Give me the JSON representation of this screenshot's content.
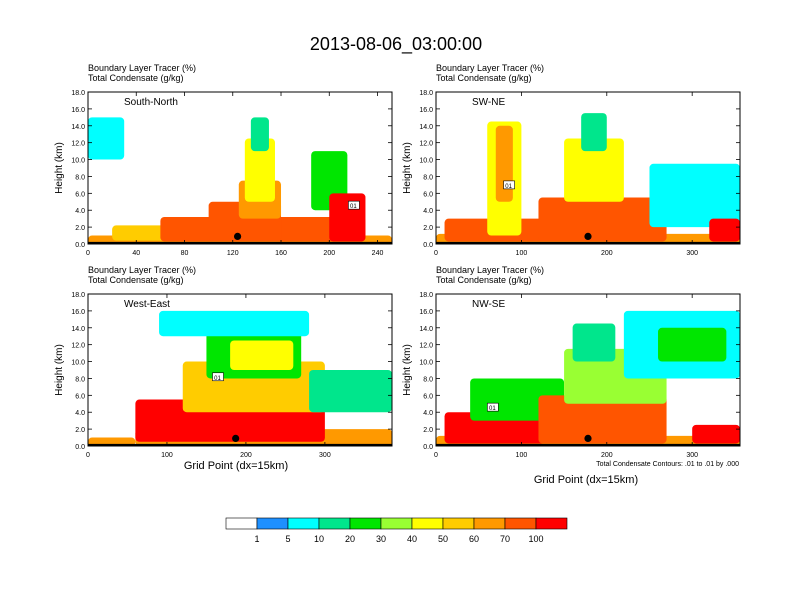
{
  "title": "2013-08-06_03:00:00",
  "panel_label_line1": "Boundary Layer Tracer   (%)",
  "panel_label_line2": "Total Condensate   (g/kg)",
  "ylabel": "Height (km)",
  "xlabel": "Grid Point (dx=15km)",
  "contour_note": "Total Condensate Contours: .01 to .01 by .000",
  "contour_label": "01",
  "colors": {
    "bins": [
      "#ffffff",
      "#1e90ff",
      "#00ffff",
      "#00e68c",
      "#00e600",
      "#99ff33",
      "#ffff00",
      "#ffcc00",
      "#ff9900",
      "#ff5500",
      "#ff0000"
    ],
    "contour": "#000000",
    "terrain": "#000000"
  },
  "colorbar": {
    "labels": [
      "1",
      "5",
      "10",
      "20",
      "30",
      "40",
      "50",
      "60",
      "70",
      "100"
    ]
  },
  "chart_data": [
    {
      "type": "heatmap",
      "name": "South-North",
      "xlim": [
        0,
        252
      ],
      "ylim": [
        0,
        18
      ],
      "xticks": [
        "0",
        "40",
        "80",
        "120",
        "160",
        "200",
        "240"
      ],
      "xtick_values": [
        0,
        40,
        80,
        120,
        160,
        200,
        240
      ],
      "yticks": [
        "0.0",
        "2.0",
        "4.0",
        "6.0",
        "8.0",
        "10.0",
        "12.0",
        "14.0",
        "16.0",
        "18.0"
      ],
      "marker_x": 124,
      "contour_label_x": 220,
      "contour_label_y": 4.6,
      "cells": [
        {
          "x0": 0,
          "x1": 252,
          "y0": 0,
          "y1": 1.0,
          "bin": 8
        },
        {
          "x0": 20,
          "x1": 110,
          "y0": 0.4,
          "y1": 2.2,
          "bin": 7
        },
        {
          "x0": 60,
          "x1": 230,
          "y0": 0.3,
          "y1": 3.2,
          "bin": 9
        },
        {
          "x0": 100,
          "x1": 160,
          "y0": 0.3,
          "y1": 5.0,
          "bin": 9
        },
        {
          "x0": 125,
          "x1": 160,
          "y0": 3.0,
          "y1": 7.5,
          "bin": 8
        },
        {
          "x0": 130,
          "x1": 155,
          "y0": 5.0,
          "y1": 12.5,
          "bin": 6
        },
        {
          "x0": 135,
          "x1": 150,
          "y0": 11.0,
          "y1": 15.0,
          "bin": 3
        },
        {
          "x0": 0,
          "x1": 30,
          "y0": 10.0,
          "y1": 15.0,
          "bin": 2
        },
        {
          "x0": 185,
          "x1": 215,
          "y0": 4.0,
          "y1": 11.0,
          "bin": 4
        },
        {
          "x0": 200,
          "x1": 230,
          "y0": 0.3,
          "y1": 6.0,
          "bin": 10
        }
      ]
    },
    {
      "type": "heatmap",
      "name": "SW-NE",
      "xlim": [
        0,
        356
      ],
      "ylim": [
        0,
        18
      ],
      "xticks": [
        "0",
        "100",
        "200",
        "300"
      ],
      "xtick_values": [
        0,
        100,
        200,
        300
      ],
      "yticks": [
        "0.0",
        "2.0",
        "4.0",
        "6.0",
        "8.0",
        "10.0",
        "12.0",
        "14.0",
        "16.0",
        "18.0"
      ],
      "marker_x": 178,
      "contour_label_x": 85,
      "contour_label_y": 7.0,
      "cells": [
        {
          "x0": 0,
          "x1": 356,
          "y0": 0,
          "y1": 1.2,
          "bin": 8
        },
        {
          "x0": 10,
          "x1": 130,
          "y0": 0.3,
          "y1": 3.0,
          "bin": 9
        },
        {
          "x0": 60,
          "x1": 100,
          "y0": 1.0,
          "y1": 14.5,
          "bin": 6
        },
        {
          "x0": 70,
          "x1": 90,
          "y0": 5.0,
          "y1": 14.0,
          "bin": 8
        },
        {
          "x0": 120,
          "x1": 270,
          "y0": 0.3,
          "y1": 5.5,
          "bin": 9
        },
        {
          "x0": 150,
          "x1": 220,
          "y0": 5.0,
          "y1": 12.5,
          "bin": 6
        },
        {
          "x0": 170,
          "x1": 200,
          "y0": 11.0,
          "y1": 15.5,
          "bin": 3
        },
        {
          "x0": 250,
          "x1": 356,
          "y0": 2.0,
          "y1": 9.5,
          "bin": 2
        },
        {
          "x0": 320,
          "x1": 356,
          "y0": 0.3,
          "y1": 3.0,
          "bin": 10
        }
      ]
    },
    {
      "type": "heatmap",
      "name": "West-East",
      "xlim": [
        0,
        385
      ],
      "ylim": [
        0,
        18
      ],
      "xticks": [
        "0",
        "100",
        "200",
        "300"
      ],
      "xtick_values": [
        0,
        100,
        200,
        300
      ],
      "yticks": [
        "0.0",
        "2.0",
        "4.0",
        "6.0",
        "8.0",
        "10.0",
        "12.0",
        "14.0",
        "16.0",
        "18.0"
      ],
      "marker_x": 187,
      "contour_label_x": 164,
      "contour_label_y": 8.2,
      "cells": [
        {
          "x0": 0,
          "x1": 60,
          "y0": 0,
          "y1": 1.0,
          "bin": 8
        },
        {
          "x0": 60,
          "x1": 385,
          "y0": 0,
          "y1": 2.0,
          "bin": 8
        },
        {
          "x0": 60,
          "x1": 300,
          "y0": 0.5,
          "y1": 5.5,
          "bin": 10
        },
        {
          "x0": 120,
          "x1": 300,
          "y0": 4.0,
          "y1": 10.0,
          "bin": 7
        },
        {
          "x0": 150,
          "x1": 270,
          "y0": 8.0,
          "y1": 14.0,
          "bin": 4
        },
        {
          "x0": 180,
          "x1": 260,
          "y0": 9.0,
          "y1": 12.5,
          "bin": 6
        },
        {
          "x0": 90,
          "x1": 280,
          "y0": 13.0,
          "y1": 16.0,
          "bin": 2
        },
        {
          "x0": 280,
          "x1": 385,
          "y0": 4.0,
          "y1": 9.0,
          "bin": 3
        }
      ]
    },
    {
      "type": "heatmap",
      "name": "NW-SE",
      "xlim": [
        0,
        356
      ],
      "ylim": [
        0,
        18
      ],
      "xticks": [
        "0",
        "100",
        "200",
        "300"
      ],
      "xtick_values": [
        0,
        100,
        200,
        300
      ],
      "yticks": [
        "0.0",
        "2.0",
        "4.0",
        "6.0",
        "8.0",
        "10.0",
        "12.0",
        "14.0",
        "16.0",
        "18.0"
      ],
      "marker_x": 178,
      "contour_label_x": 66,
      "contour_label_y": 4.6,
      "cells": [
        {
          "x0": 0,
          "x1": 356,
          "y0": 0,
          "y1": 1.2,
          "bin": 8
        },
        {
          "x0": 10,
          "x1": 150,
          "y0": 0.3,
          "y1": 4.0,
          "bin": 10
        },
        {
          "x0": 40,
          "x1": 150,
          "y0": 3.0,
          "y1": 8.0,
          "bin": 4
        },
        {
          "x0": 120,
          "x1": 270,
          "y0": 0.3,
          "y1": 6.0,
          "bin": 9
        },
        {
          "x0": 150,
          "x1": 270,
          "y0": 5.0,
          "y1": 11.5,
          "bin": 5
        },
        {
          "x0": 160,
          "x1": 210,
          "y0": 10.0,
          "y1": 14.5,
          "bin": 3
        },
        {
          "x0": 220,
          "x1": 356,
          "y0": 8.0,
          "y1": 16.0,
          "bin": 2
        },
        {
          "x0": 260,
          "x1": 340,
          "y0": 10.0,
          "y1": 14.0,
          "bin": 4
        },
        {
          "x0": 300,
          "x1": 356,
          "y0": 0.3,
          "y1": 2.5,
          "bin": 10
        }
      ]
    }
  ]
}
